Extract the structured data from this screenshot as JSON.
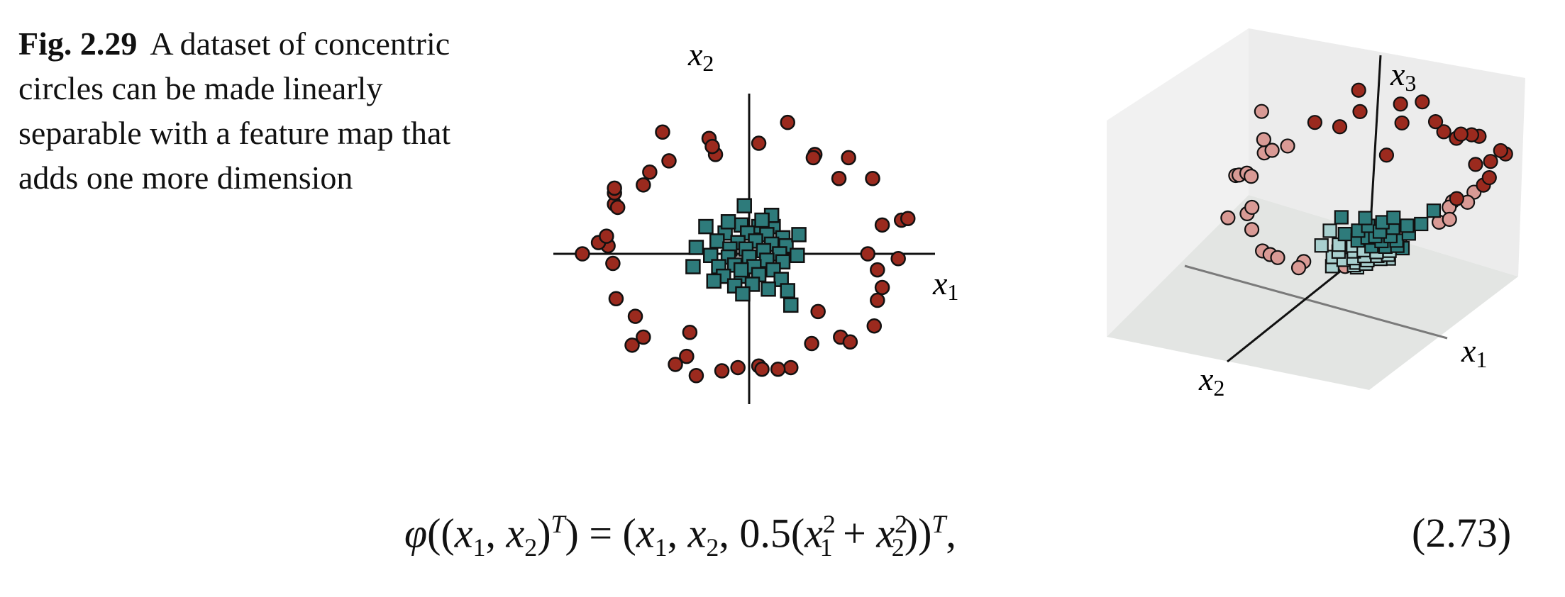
{
  "caption": {
    "label": "Fig. 2.29",
    "text": "A dataset of concentric circles can be made linearly separable with a feature map that adds one more dimension"
  },
  "colors": {
    "outer_class": "#9b2a1e",
    "inner_class": "#2e7b7b",
    "outer_class_faded": "#d99a95",
    "inner_class_faded": "#a9d0cf",
    "pane": "#eeeeee",
    "floor": "#e2e4e2"
  },
  "figure_2d": {
    "axis_labels": {
      "x_var": "x",
      "x_sub": "1",
      "y_var": "x",
      "y_sub": "2"
    }
  },
  "figure_3d": {
    "axis_labels": {
      "x1_var": "x",
      "x1_sub": "1",
      "x2_var": "x",
      "x2_sub": "2",
      "x3_var": "x",
      "x3_sub": "3"
    }
  },
  "chart_data": {
    "type": "scatter",
    "xlabel": "x1",
    "ylabel": "x2",
    "xlim": [
      -1.25,
      1.25
    ],
    "ylim": [
      -1.25,
      1.25
    ],
    "grid": false,
    "series": [
      {
        "marker": "circle",
        "color": "#9b2a1e",
        "points": [
          [
            -0.54,
            0.76
          ],
          [
            -0.25,
            0.72
          ],
          [
            0.24,
            0.82
          ],
          [
            0.41,
            0.62
          ],
          [
            0.62,
            0.6
          ],
          [
            0.77,
            0.47
          ],
          [
            0.95,
            0.21
          ],
          [
            0.99,
            0.22
          ],
          [
            0.83,
            0.18
          ],
          [
            0.74,
            0.0
          ],
          [
            0.93,
            -0.03
          ],
          [
            0.8,
            -0.1
          ],
          [
            0.83,
            -0.21
          ],
          [
            0.8,
            -0.29
          ],
          [
            0.78,
            -0.45
          ],
          [
            0.57,
            -0.52
          ],
          [
            0.63,
            -0.55
          ],
          [
            0.39,
            -0.56
          ],
          [
            0.26,
            -0.71
          ],
          [
            0.18,
            -0.72
          ],
          [
            0.06,
            -0.7
          ],
          [
            -0.07,
            -0.71
          ],
          [
            -0.17,
            -0.73
          ],
          [
            -0.33,
            -0.76
          ],
          [
            -0.46,
            -0.69
          ],
          [
            -0.39,
            -0.64
          ],
          [
            -0.66,
            -0.52
          ],
          [
            -0.73,
            -0.57
          ],
          [
            -0.71,
            -0.39
          ],
          [
            -0.83,
            -0.28
          ],
          [
            -0.85,
            -0.06
          ],
          [
            -0.88,
            0.05
          ],
          [
            -1.04,
            0.0
          ],
          [
            -0.94,
            0.07
          ],
          [
            -0.89,
            0.11
          ],
          [
            -0.84,
            0.31
          ],
          [
            -0.84,
            0.38
          ],
          [
            -0.66,
            0.43
          ],
          [
            -0.62,
            0.51
          ],
          [
            -0.5,
            0.58
          ],
          [
            -0.21,
            0.62
          ],
          [
            -0.23,
            0.67
          ],
          [
            0.06,
            0.69
          ],
          [
            0.4,
            0.6
          ],
          [
            0.56,
            0.47
          ],
          [
            -0.84,
            0.41
          ],
          [
            0.08,
            -0.72
          ],
          [
            -0.37,
            -0.49
          ],
          [
            0.43,
            -0.36
          ],
          [
            -0.82,
            0.29
          ]
        ]
      },
      {
        "marker": "square",
        "color": "#2e7b7b",
        "points": [
          [
            -0.27,
            0.17
          ],
          [
            -0.05,
            0.18
          ],
          [
            0.06,
            0.17
          ],
          [
            0.15,
            0.17
          ],
          [
            -0.15,
            0.13
          ],
          [
            -0.01,
            0.13
          ],
          [
            0.11,
            0.12
          ],
          [
            0.21,
            0.1
          ],
          [
            -0.2,
            0.08
          ],
          [
            -0.07,
            0.07
          ],
          [
            0.04,
            0.08
          ],
          [
            0.14,
            0.06
          ],
          [
            0.23,
            0.05
          ],
          [
            -0.33,
            0.04
          ],
          [
            -0.12,
            0.03
          ],
          [
            -0.02,
            0.03
          ],
          [
            0.09,
            0.02
          ],
          [
            0.19,
            0.0
          ],
          [
            0.3,
            -0.01
          ],
          [
            -0.24,
            -0.01
          ],
          [
            -0.13,
            -0.02
          ],
          [
            0.0,
            -0.02
          ],
          [
            0.11,
            -0.04
          ],
          [
            0.21,
            -0.05
          ],
          [
            -0.35,
            -0.08
          ],
          [
            -0.19,
            -0.08
          ],
          [
            -0.09,
            -0.07
          ],
          [
            0.03,
            -0.08
          ],
          [
            0.15,
            -0.1
          ],
          [
            -0.16,
            -0.14
          ],
          [
            -0.05,
            -0.14
          ],
          [
            0.06,
            -0.13
          ],
          [
            0.2,
            -0.16
          ],
          [
            -0.09,
            -0.2
          ],
          [
            0.02,
            -0.19
          ],
          [
            -0.04,
            -0.25
          ],
          [
            0.12,
            -0.22
          ],
          [
            0.24,
            -0.23
          ],
          [
            0.14,
            0.24
          ],
          [
            -0.13,
            0.2
          ],
          [
            0.31,
            0.12
          ],
          [
            -0.05,
            -0.1
          ],
          [
            0.08,
            0.21
          ],
          [
            -0.22,
            -0.17
          ],
          [
            0.26,
            -0.32
          ],
          [
            -0.03,
            0.3
          ]
        ]
      }
    ],
    "views": [
      {
        "type": "scatter3d",
        "xlabel": "x1",
        "ylabel": "x2",
        "zlabel": "x3",
        "note_formula": "x3 = 0.5(x1^2 + x2^2)"
      }
    ]
  },
  "equation": {
    "phi": "φ",
    "open": "((",
    "x": "x",
    "s1": "1",
    "comma": ", ",
    "s2": "2",
    "close_t": ")",
    "T": "T",
    "rest1": ") = (",
    "half": "0.5(",
    "sq": "2",
    "plus": " + ",
    "close2": "))",
    "trail": ",",
    "number": "(2.73)"
  }
}
